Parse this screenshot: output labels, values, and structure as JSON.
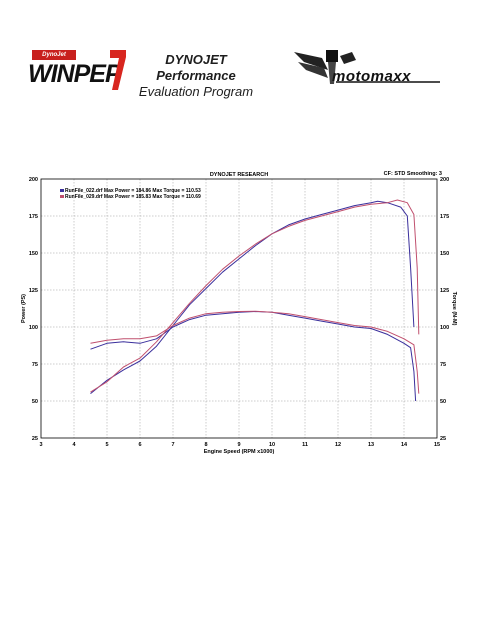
{
  "header": {
    "winpep_badge": "DynoJet",
    "winpep_word": "WINPEP",
    "title_line1": "DYNOJET Performance",
    "title_line2": "Evaluation Program",
    "motomaxx_word": "motomaxx"
  },
  "colors": {
    "series1": "#3a2f9c",
    "series2": "#c0506e",
    "grid": "#9a9a9a",
    "axis": "#000000"
  },
  "chart_data": {
    "type": "line",
    "title": "DYNOJET RESEARCH",
    "annotation": "CF: STD  Smoothing: 3",
    "xlabel": "Engine Speed (RPM x1000)",
    "ylabel_left": "Power (PS)",
    "ylabel_right": "Torque (N-M)",
    "xlim": [
      3,
      15
    ],
    "ylim": [
      25,
      200
    ],
    "xticks": [
      "3",
      "4",
      "5",
      "6",
      "7",
      "8",
      "9",
      "10",
      "11",
      "12",
      "13",
      "14",
      "15"
    ],
    "yticks": [
      "25",
      "50",
      "75",
      "100",
      "125",
      "150",
      "175",
      "200"
    ],
    "grid": true,
    "legend_position": "top-left",
    "legend": [
      "RunFile_022.drf Max Power = 184.86    Max Torque = 110.53",
      "RunFile_029.drf Max Power = 185.83    Max Torque = 110.69"
    ],
    "series": [
      {
        "name": "RunFile_022.drf",
        "power": [
          [
            4.5,
            55
          ],
          [
            5,
            64
          ],
          [
            5.5,
            71
          ],
          [
            6,
            77
          ],
          [
            6.5,
            87
          ],
          [
            7,
            101
          ],
          [
            7.5,
            115
          ],
          [
            8,
            126
          ],
          [
            8.5,
            137
          ],
          [
            9,
            146
          ],
          [
            9.5,
            155
          ],
          [
            10,
            163
          ],
          [
            10.5,
            169
          ],
          [
            11,
            173
          ],
          [
            11.5,
            176
          ],
          [
            12,
            179
          ],
          [
            12.5,
            182
          ],
          [
            13,
            184
          ],
          [
            13.2,
            184.9
          ],
          [
            13.5,
            184
          ],
          [
            13.9,
            181
          ],
          [
            14.1,
            175
          ],
          [
            14.2,
            140
          ],
          [
            14.3,
            100
          ]
        ],
        "torque": [
          [
            4.5,
            85
          ],
          [
            5,
            89
          ],
          [
            5.5,
            90
          ],
          [
            6,
            89
          ],
          [
            6.5,
            92
          ],
          [
            7,
            100
          ],
          [
            7.5,
            105
          ],
          [
            8,
            108
          ],
          [
            8.5,
            109
          ],
          [
            9,
            110
          ],
          [
            9.5,
            110.5
          ],
          [
            10,
            110
          ],
          [
            10.5,
            108
          ],
          [
            11,
            106
          ],
          [
            11.5,
            104
          ],
          [
            12,
            102
          ],
          [
            12.5,
            100
          ],
          [
            13,
            99
          ],
          [
            13.5,
            95
          ],
          [
            14,
            89
          ],
          [
            14.2,
            86
          ],
          [
            14.3,
            70
          ],
          [
            14.35,
            50
          ]
        ]
      },
      {
        "name": "RunFile_029.drf",
        "power": [
          [
            4.5,
            56
          ],
          [
            5,
            63
          ],
          [
            5.5,
            73
          ],
          [
            6,
            79
          ],
          [
            6.5,
            90
          ],
          [
            7,
            103
          ],
          [
            7.5,
            116
          ],
          [
            8,
            128
          ],
          [
            8.5,
            139
          ],
          [
            9,
            148
          ],
          [
            9.5,
            156
          ],
          [
            10,
            163
          ],
          [
            10.5,
            168
          ],
          [
            11,
            172
          ],
          [
            11.5,
            175
          ],
          [
            12,
            178
          ],
          [
            12.5,
            181
          ],
          [
            13,
            183
          ],
          [
            13.5,
            184
          ],
          [
            13.8,
            185.8
          ],
          [
            14.1,
            184
          ],
          [
            14.3,
            176
          ],
          [
            14.4,
            140
          ],
          [
            14.45,
            95
          ]
        ],
        "torque": [
          [
            4.5,
            89
          ],
          [
            5,
            91
          ],
          [
            5.5,
            92
          ],
          [
            6,
            92
          ],
          [
            6.5,
            94
          ],
          [
            7,
            101
          ],
          [
            7.5,
            106
          ],
          [
            8,
            109
          ],
          [
            8.5,
            110
          ],
          [
            9,
            110.5
          ],
          [
            9.5,
            110.7
          ],
          [
            10,
            110
          ],
          [
            10.5,
            109
          ],
          [
            11,
            107
          ],
          [
            11.5,
            105
          ],
          [
            12,
            103
          ],
          [
            12.5,
            101
          ],
          [
            13,
            100
          ],
          [
            13.5,
            97
          ],
          [
            14,
            92
          ],
          [
            14.3,
            88
          ],
          [
            14.4,
            70
          ],
          [
            14.45,
            55
          ]
        ]
      }
    ]
  }
}
